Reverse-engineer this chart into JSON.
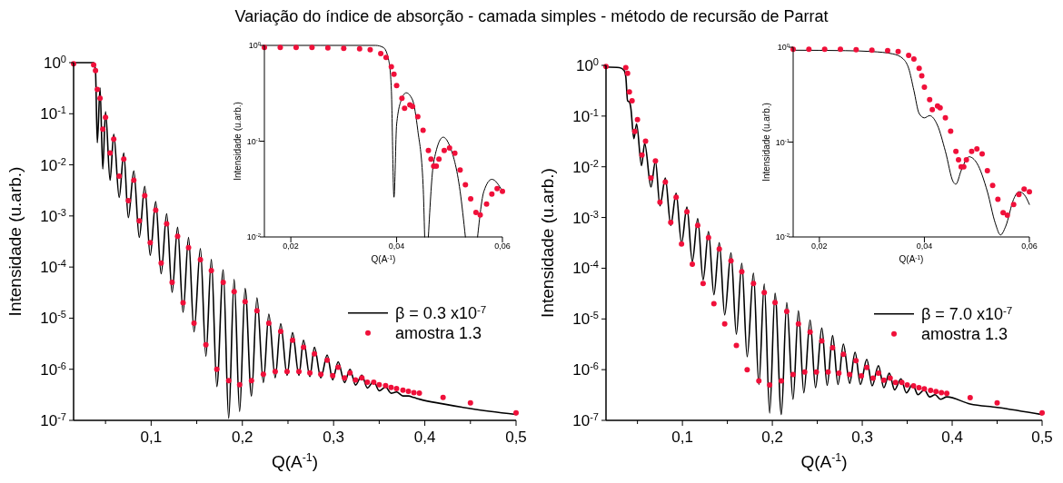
{
  "chart_data": [
    {
      "type": "line",
      "title": "Variação do índice de absorção - camada simples - método de recursão de Parrat",
      "xlabel": "Q(A$^{-1}$)",
      "ylabel": "Intensidade (u.arb.)",
      "log": "y",
      "legend": "right",
      "xlim": [
        0.015,
        0.5
      ],
      "ylim": [
        1e-07,
        1
      ],
      "xticks": [
        {
          "value": 0.05,
          "label": null
        },
        {
          "value": 0.1,
          "label": "0,1"
        },
        {
          "value": 0.15,
          "label": null
        },
        {
          "value": 0.2,
          "label": "0,2"
        },
        {
          "value": 0.25,
          "label": null
        },
        {
          "value": 0.3,
          "label": "0,3"
        },
        {
          "value": 0.35,
          "label": null
        },
        {
          "value": 0.4,
          "label": "0,4"
        },
        {
          "value": 0.45,
          "label": null
        },
        {
          "value": 0.5,
          "label": "0,5"
        }
      ],
      "yticks": [
        {
          "value": 1e-07,
          "label": "10$^{-7}$"
        },
        {
          "value": 1e-06,
          "label": "10$^{-6}$"
        },
        {
          "value": 1e-05,
          "label": "10$^{-5}$"
        },
        {
          "value": 0.0001,
          "label": "10$^{-4}$"
        },
        {
          "value": 0.001,
          "label": "10$^{-3}$"
        },
        {
          "value": 0.01,
          "label": "10$^{-2}$"
        },
        {
          "value": 0.1,
          "label": "10$^{-1}$"
        },
        {
          "value": 1,
          "label": "10$^{0}$"
        }
      ],
      "series": [
        {
          "name": "β = 0.3 x10$^{-7}$",
          "color": "#000000",
          "x": [
            0.015,
            0.037,
            0.039,
            0.041,
            0.044,
            0.047,
            0.05,
            0.055,
            0.059,
            0.065,
            0.07,
            0.075,
            0.081,
            0.087,
            0.093,
            0.099,
            0.105,
            0.111,
            0.117,
            0.123,
            0.129,
            0.135,
            0.141,
            0.147,
            0.154,
            0.16,
            0.166,
            0.172,
            0.179,
            0.185,
            0.191,
            0.197,
            0.203,
            0.21,
            0.216,
            0.223,
            0.229,
            0.236,
            0.242,
            0.249,
            0.255,
            0.262,
            0.267,
            0.274,
            0.279,
            0.286,
            0.293,
            0.299,
            0.305,
            0.312,
            0.318,
            0.324,
            0.331,
            0.337,
            0.344,
            0.35,
            0.357,
            0.363,
            0.369,
            0.376,
            0.382,
            0.388,
            0.394,
            0.42,
            0.45,
            0.5
          ],
          "values": [
            1,
            1,
            0.7,
            0.027,
            0.32,
            0.0083,
            0.11,
            0.005,
            0.04,
            0.0023,
            0.017,
            0.00093,
            0.0076,
            0.00038,
            0.0038,
            0.00017,
            0.0019,
            7.4e-05,
            0.0011,
            3.2e-05,
            0.0006,
            1.3e-05,
            0.00038,
            5.4e-06,
            0.00023,
            1.8e-06,
            0.00014,
            4.6e-07,
            8.8e-05,
            1.1e-07,
            5.7e-05,
            1.5e-07,
            3.8e-05,
            3e-07,
            2.5e-05,
            5.5e-07,
            1.2e-05,
            6.8e-07,
            7.8e-06,
            7.6e-07,
            5.2e-06,
            7.6e-07,
            3.7e-06,
            7.2e-07,
            2.7e-06,
            6.8e-07,
            1.9e-06,
            6.2e-07,
            1.4e-06,
            5.5e-07,
            1e-06,
            4.9e-07,
            7.6e-07,
            4.3e-07,
            5.8e-07,
            3.8e-07,
            4.5e-07,
            3.4e-07,
            3.6e-07,
            3e-07,
            3e-07,
            2.8e-07,
            2.6e-07,
            2.1e-07,
            1.7e-07,
            1.3e-07
          ]
        },
        {
          "name": "amostra 1.3",
          "type": "scatter",
          "marker": "circle",
          "color": "#f0103a",
          "x": [
            0.015,
            0.037,
            0.039,
            0.041,
            0.044,
            0.047,
            0.05,
            0.055,
            0.059,
            0.065,
            0.07,
            0.075,
            0.081,
            0.087,
            0.093,
            0.099,
            0.105,
            0.111,
            0.117,
            0.123,
            0.129,
            0.135,
            0.141,
            0.147,
            0.154,
            0.16,
            0.166,
            0.172,
            0.179,
            0.185,
            0.191,
            0.197,
            0.203,
            0.21,
            0.216,
            0.223,
            0.229,
            0.236,
            0.242,
            0.249,
            0.255,
            0.262,
            0.267,
            0.274,
            0.279,
            0.286,
            0.293,
            0.299,
            0.305,
            0.312,
            0.318,
            0.324,
            0.331,
            0.337,
            0.344,
            0.35,
            0.357,
            0.363,
            0.369,
            0.376,
            0.382,
            0.388,
            0.394,
            0.42,
            0.45,
            0.5
          ],
          "values": [
            0.95,
            0.9,
            0.7,
            0.3,
            0.2,
            0.05,
            0.085,
            0.017,
            0.032,
            0.006,
            0.013,
            0.002,
            0.005,
            0.0008,
            0.0025,
            0.0003,
            0.0013,
            0.00012,
            0.0007,
            5e-05,
            0.0004,
            2e-05,
            0.00024,
            8e-06,
            0.00014,
            3e-06,
            8.5e-05,
            1e-06,
            5e-05,
            6e-07,
            3.3e-05,
            5e-07,
            2.1e-05,
            6e-07,
            1.4e-05,
            8e-07,
            8e-06,
            9e-07,
            5.5e-06,
            9e-07,
            3.7e-06,
            9e-07,
            2.7e-06,
            8.5e-07,
            2e-06,
            8e-07,
            1.5e-06,
            7.5e-07,
            1.1e-06,
            6.8e-07,
            8.5e-07,
            6.2e-07,
            6.8e-07,
            5.6e-07,
            5.6e-07,
            5e-07,
            4.8e-07,
            4.4e-07,
            4.2e-07,
            3.9e-07,
            3.7e-07,
            3.5e-07,
            3.4e-07,
            2.8e-07,
            2.2e-07,
            1.4e-07
          ]
        }
      ]
    },
    {
      "type": "line",
      "xlabel": "Q(A$^{-1}$)",
      "ylabel": "Intensidade (u.arb.)",
      "log": "y",
      "xlim": [
        0.015,
        0.06
      ],
      "ylim": [
        0.01,
        1
      ],
      "xticks": [
        {
          "value": 0.02,
          "label": "0,02"
        },
        {
          "value": 0.04,
          "label": "0,04"
        },
        {
          "value": 0.06,
          "label": "0,06"
        }
      ],
      "yticks": [
        {
          "value": 0.01,
          "label": "10$^{-2}$"
        },
        {
          "value": 0.1,
          "label": "10$^{-1}$"
        },
        {
          "value": 1,
          "label": "10$^{0}$"
        }
      ],
      "series": [
        {
          "color": "#000000",
          "x": [
            0.015,
            0.036,
            0.0375,
            0.0385,
            0.039,
            0.0395,
            0.04,
            0.041,
            0.0418,
            0.043,
            0.044,
            0.045,
            0.0453,
            0.0456,
            0.046,
            0.047,
            0.0488,
            0.05,
            0.052,
            0.053,
            0.054,
            0.0553,
            0.0565,
            0.058,
            0.06
          ],
          "values": [
            1,
            1,
            0.95,
            0.7,
            0.35,
            0.026,
            0.15,
            0.28,
            0.32,
            0.27,
            0.13,
            0.035,
            0.01,
            null,
            0.01,
            0.06,
            0.11,
            0.09,
            0.03,
            0.01,
            null,
            0.01,
            0.03,
            0.04,
            0.03
          ]
        },
        {
          "type": "scatter",
          "marker": "circle",
          "color": "#f0103a",
          "x": [
            0.015,
            0.018,
            0.021,
            0.024,
            0.027,
            0.03,
            0.033,
            0.035,
            0.037,
            0.038,
            0.039,
            0.0395,
            0.04,
            0.041,
            0.0415,
            0.0425,
            0.043,
            0.044,
            0.045,
            0.046,
            0.0465,
            0.047,
            0.0475,
            0.048,
            0.049,
            0.05,
            0.051,
            0.052,
            0.053,
            0.054,
            0.055,
            0.0558,
            0.057,
            0.058,
            0.059,
            0.06
          ],
          "values": [
            0.95,
            0.95,
            0.95,
            0.95,
            0.94,
            0.93,
            0.92,
            0.9,
            0.82,
            0.75,
            0.6,
            0.5,
            0.38,
            0.28,
            0.22,
            0.24,
            0.23,
            0.18,
            0.13,
            0.08,
            0.065,
            0.055,
            0.055,
            0.065,
            0.08,
            0.085,
            0.075,
            0.05,
            0.035,
            0.025,
            0.018,
            0.017,
            0.022,
            0.028,
            0.032,
            0.03
          ]
        }
      ]
    },
    {
      "type": "line",
      "xlabel": "Q(A$^{-1}$)",
      "ylabel": "Intensidade (u.arb.)",
      "log": "y",
      "legend": "right",
      "xlim": [
        0.015,
        0.5
      ],
      "ylim": [
        1e-07,
        1
      ],
      "xticks": [
        {
          "value": 0.05,
          "label": null
        },
        {
          "value": 0.1,
          "label": "0,1"
        },
        {
          "value": 0.15,
          "label": null
        },
        {
          "value": 0.2,
          "label": "0,2"
        },
        {
          "value": 0.25,
          "label": null
        },
        {
          "value": 0.3,
          "label": "0,3"
        },
        {
          "value": 0.35,
          "label": null
        },
        {
          "value": 0.4,
          "label": "0,4"
        },
        {
          "value": 0.45,
          "label": null
        },
        {
          "value": 0.5,
          "label": "0,5"
        }
      ],
      "yticks": [
        {
          "value": 1e-07,
          "label": "10$^{-7}$"
        },
        {
          "value": 1e-06,
          "label": "10$^{-6}$"
        },
        {
          "value": 1e-05,
          "label": "10$^{-5}$"
        },
        {
          "value": 0.0001,
          "label": "10$^{-4}$"
        },
        {
          "value": 0.001,
          "label": "10$^{-3}$"
        },
        {
          "value": 0.01,
          "label": "10$^{-2}$"
        },
        {
          "value": 0.1,
          "label": "10$^{-1}$"
        },
        {
          "value": 1,
          "label": "10$^{0}$"
        }
      ],
      "series": [
        {
          "name": "β = 7.0 x10$^{-7}$",
          "color": "#000000",
          "x": [
            0.015,
            0.03,
            0.035,
            0.037,
            0.039,
            0.041,
            0.0425,
            0.046,
            0.049,
            0.0545,
            0.058,
            0.065,
            0.07,
            0.075,
            0.081,
            0.087,
            0.093,
            0.099,
            0.105,
            0.111,
            0.117,
            0.123,
            0.129,
            0.135,
            0.141,
            0.147,
            0.154,
            0.16,
            0.166,
            0.172,
            0.179,
            0.185,
            0.191,
            0.197,
            0.203,
            0.21,
            0.216,
            0.223,
            0.229,
            0.235,
            0.242,
            0.248,
            0.255,
            0.261,
            0.267,
            0.273,
            0.279,
            0.286,
            0.292,
            0.298,
            0.305,
            0.311,
            0.318,
            0.324,
            0.33,
            0.336,
            0.343,
            0.349,
            0.356,
            0.362,
            0.369,
            0.375,
            0.381,
            0.387,
            0.394,
            0.42,
            0.45,
            0.5
          ],
          "values": [
            0.93,
            0.9,
            0.8,
            0.6,
            0.2,
            0.19,
            0.15,
            0.036,
            0.07,
            0.0105,
            0.029,
            0.004,
            0.013,
            0.0017,
            0.006,
            0.0007,
            0.003,
            0.00031,
            0.0016,
            0.000135,
            0.00095,
            5.9e-05,
            0.00053,
            3e-05,
            0.00032,
            1.2e-05,
            0.0002,
            5e-06,
            0.000125,
            1.8e-06,
            8e-05,
            5.1e-07,
            4.9e-05,
            1.4e-07,
            3.2e-05,
            1.3e-07,
            2.1e-05,
            2.6e-07,
            1.45e-05,
            3.5e-07,
            9.5e-06,
            4.4e-07,
            6.6e-06,
            4.9e-07,
            4.7e-06,
            5.1e-07,
            3.2e-06,
            5.4e-07,
            2.2e-06,
            5.1e-07,
            1.6e-06,
            4.8e-07,
            1.2e-06,
            4.4e-07,
            8.5e-07,
            4e-07,
            6.6e-07,
            3.5e-07,
            5.1e-07,
            3.2e-07,
            4e-07,
            2.9e-07,
            3.2e-07,
            2.6e-07,
            2.9e-07,
            2.1e-07,
            1.8e-07,
            1.3e-07
          ]
        },
        {
          "name": "amostra 1.3",
          "type": "scatter",
          "marker": "circle",
          "color": "#f0103a",
          "x": [
            0.015,
            0.037,
            0.039,
            0.041,
            0.044,
            0.047,
            0.05,
            0.055,
            0.059,
            0.065,
            0.07,
            0.075,
            0.081,
            0.087,
            0.093,
            0.099,
            0.105,
            0.111,
            0.117,
            0.123,
            0.129,
            0.135,
            0.141,
            0.147,
            0.154,
            0.16,
            0.166,
            0.172,
            0.179,
            0.185,
            0.191,
            0.197,
            0.203,
            0.21,
            0.216,
            0.223,
            0.229,
            0.236,
            0.242,
            0.249,
            0.255,
            0.262,
            0.267,
            0.274,
            0.279,
            0.286,
            0.293,
            0.299,
            0.305,
            0.312,
            0.318,
            0.324,
            0.331,
            0.337,
            0.344,
            0.35,
            0.357,
            0.363,
            0.369,
            0.376,
            0.382,
            0.388,
            0.394,
            0.42,
            0.45,
            0.5
          ],
          "values": [
            0.95,
            0.9,
            0.7,
            0.3,
            0.2,
            0.05,
            0.085,
            0.017,
            0.032,
            0.006,
            0.013,
            0.002,
            0.005,
            0.0008,
            0.0025,
            0.0003,
            0.0013,
            0.00012,
            0.0007,
            5e-05,
            0.0004,
            2e-05,
            0.00024,
            8e-06,
            0.00014,
            3e-06,
            8.5e-05,
            1e-06,
            5e-05,
            6e-07,
            3.3e-05,
            5e-07,
            2.1e-05,
            6e-07,
            1.4e-05,
            8e-07,
            8e-06,
            9e-07,
            5.5e-06,
            9e-07,
            3.7e-06,
            9e-07,
            2.7e-06,
            8.5e-07,
            2e-06,
            8e-07,
            1.5e-06,
            7.5e-07,
            1.1e-06,
            6.8e-07,
            8.5e-07,
            6.2e-07,
            6.8e-07,
            5.6e-07,
            5.6e-07,
            5e-07,
            4.8e-07,
            4.4e-07,
            4.2e-07,
            3.9e-07,
            3.7e-07,
            3.5e-07,
            3.4e-07,
            2.8e-07,
            2.2e-07,
            1.4e-07
          ]
        }
      ]
    },
    {
      "type": "line",
      "xlabel": "Q(A$^{-1}$)",
      "ylabel": "Intensidade (u.arb.)",
      "log": "y",
      "xlim": [
        0.015,
        0.06
      ],
      "ylim": [
        0.01,
        1
      ],
      "xticks": [
        {
          "value": 0.02,
          "label": "0,02"
        },
        {
          "value": 0.04,
          "label": "0,04"
        },
        {
          "value": 0.06,
          "label": "0,06"
        }
      ],
      "yticks": [
        {
          "value": 0.01,
          "label": "10$^{-2}$"
        },
        {
          "value": 0.1,
          "label": "10$^{-1}$"
        },
        {
          "value": 1,
          "label": "10$^{0}$"
        }
      ],
      "series": [
        {
          "color": "#000000",
          "x": [
            0.015,
            0.025,
            0.03,
            0.034,
            0.036,
            0.037,
            0.038,
            0.039,
            0.04,
            0.041,
            0.0425,
            0.044,
            0.0455,
            0.046,
            0.047,
            0.0485,
            0.05,
            0.052,
            0.0535,
            0.0545,
            0.0555,
            0.057,
            0.058,
            0.059,
            0.06
          ],
          "values": [
            0.93,
            0.92,
            0.9,
            0.85,
            0.75,
            0.6,
            0.35,
            0.2,
            0.18,
            0.19,
            0.15,
            0.08,
            0.038,
            0.036,
            0.05,
            0.07,
            0.06,
            0.03,
            0.014,
            0.0105,
            0.013,
            0.025,
            0.03,
            0.028,
            0.022
          ]
        },
        {
          "type": "scatter",
          "marker": "circle",
          "color": "#f0103a",
          "x": [
            0.015,
            0.018,
            0.021,
            0.024,
            0.027,
            0.03,
            0.033,
            0.035,
            0.037,
            0.038,
            0.039,
            0.0395,
            0.04,
            0.041,
            0.0415,
            0.0425,
            0.043,
            0.044,
            0.045,
            0.046,
            0.0465,
            0.047,
            0.0475,
            0.048,
            0.049,
            0.05,
            0.051,
            0.052,
            0.053,
            0.054,
            0.055,
            0.0558,
            0.057,
            0.058,
            0.059,
            0.06
          ],
          "values": [
            0.95,
            0.95,
            0.95,
            0.95,
            0.94,
            0.93,
            0.92,
            0.9,
            0.82,
            0.75,
            0.6,
            0.5,
            0.38,
            0.28,
            0.22,
            0.24,
            0.23,
            0.18,
            0.13,
            0.08,
            0.065,
            0.055,
            0.055,
            0.065,
            0.08,
            0.085,
            0.075,
            0.05,
            0.035,
            0.025,
            0.018,
            0.017,
            0.022,
            0.028,
            0.032,
            0.03
          ]
        }
      ]
    }
  ]
}
